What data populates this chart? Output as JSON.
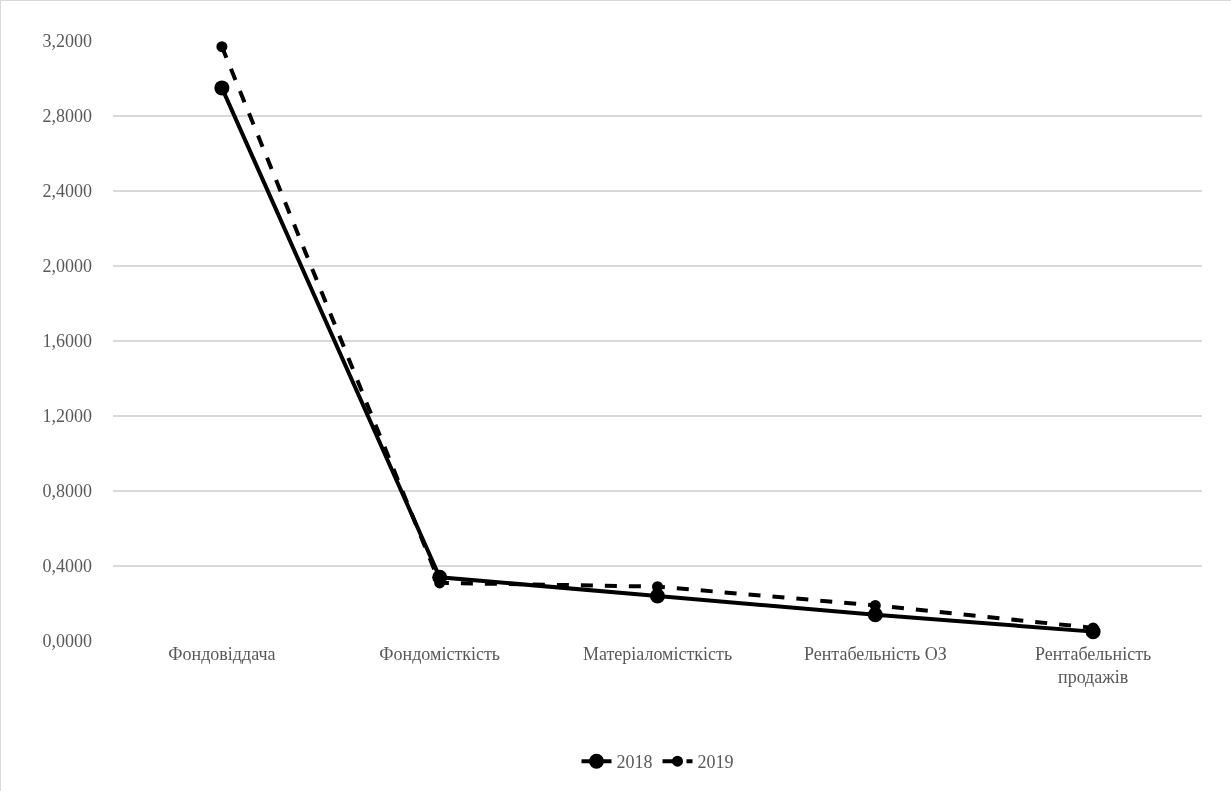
{
  "chart_data": {
    "type": "line",
    "categories": [
      "Фондовіддача",
      "Фондомісткість",
      "Матеріаломісткість",
      "Рентабельність ОЗ",
      "Рентабельність продажів"
    ],
    "series": [
      {
        "name": "2018",
        "color": "#000000",
        "line_style": "solid",
        "values": [
          2.95,
          0.34,
          0.24,
          0.14,
          0.05
        ]
      },
      {
        "name": "2019",
        "color": "#000000",
        "line_style": "dashed",
        "values": [
          3.17,
          0.31,
          0.29,
          0.19,
          0.07
        ]
      }
    ],
    "ylim": [
      0,
      3.2
    ],
    "yticks": [
      {
        "value": 0,
        "label": "0,0000"
      },
      {
        "value": 0.4,
        "label": "0,4000"
      },
      {
        "value": 0.8,
        "label": "0,8000"
      },
      {
        "value": 1.2,
        "label": "1,2000"
      },
      {
        "value": 1.6,
        "label": "1,6000"
      },
      {
        "value": 2,
        "label": "2,0000"
      },
      {
        "value": 2.4,
        "label": "2,4000"
      },
      {
        "value": 2.8,
        "label": "2,8000"
      },
      {
        "value": 3.2,
        "label": "3,2000"
      }
    ],
    "grid": "y",
    "legend": "bottom",
    "marker": "circle"
  }
}
